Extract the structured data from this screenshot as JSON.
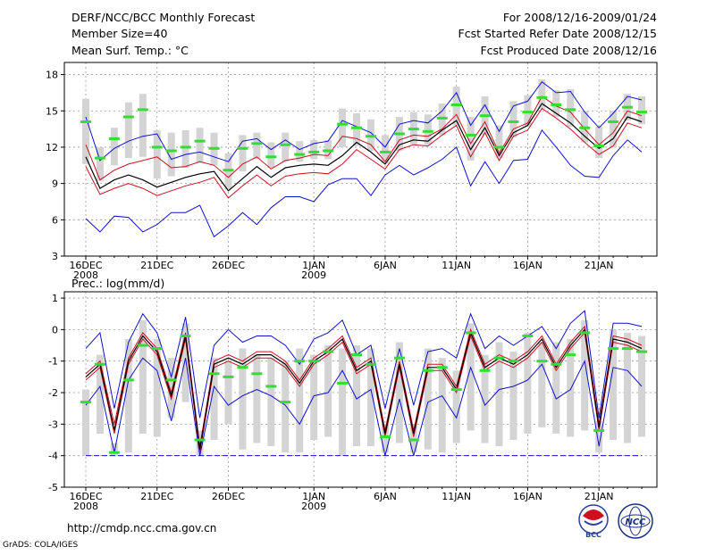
{
  "header": {
    "title": "DERF/NCC/BCC Monthly Forecast",
    "member_size": "Member Size=40",
    "variable": "Mean Surf. Temp.: °C",
    "period": "For 2008/12/16-2009/01/24",
    "started": "Fcst Started Refer Date 2008/12/15",
    "produced": "Fcst Produced Date 2008/12/16"
  },
  "footer": {
    "url": "http://cmdp.ncc.cma.gov.cn",
    "credit": "GrADS: COLA/IGES",
    "logo_bcc": "BCC",
    "logo_ncc": "NCC"
  },
  "colors": {
    "max_min": "#1010d0",
    "spread": "#cc1020",
    "mean": "#000000",
    "box": "#d4d4d4",
    "median": "#33dd33",
    "grid": "#999999"
  },
  "chart_data": [
    {
      "type": "line",
      "title": "Mean Surf. Temp.: °C",
      "xlabel": "",
      "ylabel": "°C",
      "ylim": [
        3,
        19
      ],
      "yticks": [
        3,
        6,
        9,
        12,
        15,
        18
      ],
      "x_tick_labels": [
        "16DEC",
        "21DEC",
        "26DEC",
        "1JAN",
        "6JAN",
        "11JAN",
        "16JAN",
        "21JAN"
      ],
      "x_tick_days": [
        1,
        6,
        11,
        17,
        22,
        27,
        32,
        37
      ],
      "year_labels": [
        {
          "day": 1,
          "label": "2008"
        },
        {
          "day": 17,
          "label": "2009"
        }
      ],
      "days": 40,
      "series": [
        {
          "name": "max",
          "values": [
            14.5,
            10.9,
            11.9,
            12.5,
            12.9,
            13.1,
            11.0,
            11.4,
            11.6,
            11.2,
            10.8,
            12.5,
            12.7,
            11.8,
            12.6,
            11.8,
            12.3,
            12.5,
            14.2,
            13.7,
            13.2,
            12.0,
            13.9,
            14.2,
            14.0,
            15.0,
            16.5,
            13.8,
            15.5,
            13.3,
            15.4,
            15.8,
            17.4,
            16.5,
            16.6,
            14.9,
            13.6,
            14.8,
            16.2,
            15.9
          ]
        },
        {
          "name": "upper",
          "values": [
            12.2,
            9.3,
            10.1,
            10.6,
            10.9,
            11.2,
            10.3,
            10.4,
            10.8,
            10.5,
            9.5,
            10.6,
            11.2,
            10.2,
            10.9,
            11.1,
            11.4,
            11.3,
            12.9,
            12.7,
            12.2,
            10.8,
            12.6,
            13.0,
            12.9,
            13.5,
            14.7,
            12.3,
            14.1,
            11.5,
            13.5,
            14.0,
            16.2,
            15.4,
            14.9,
            13.5,
            12.2,
            13.2,
            15.0,
            14.6
          ]
        },
        {
          "name": "mean",
          "values": [
            11.2,
            8.6,
            9.3,
            9.7,
            9.3,
            8.7,
            9.1,
            9.5,
            9.8,
            10.0,
            8.4,
            9.4,
            10.4,
            9.5,
            10.3,
            10.5,
            10.6,
            10.5,
            11.3,
            12.4,
            11.6,
            10.6,
            12.2,
            12.6,
            12.5,
            13.4,
            14.2,
            11.8,
            13.6,
            11.3,
            13.2,
            13.8,
            15.6,
            14.8,
            14.0,
            12.9,
            11.9,
            12.7,
            14.5,
            14.1
          ]
        },
        {
          "name": "lower",
          "values": [
            10.4,
            8.1,
            8.6,
            9.0,
            8.6,
            8.0,
            8.4,
            8.8,
            9.1,
            9.5,
            7.8,
            8.8,
            9.7,
            8.8,
            9.6,
            9.8,
            9.9,
            9.8,
            10.6,
            11.8,
            11.0,
            10.2,
            11.8,
            12.2,
            12.1,
            13.0,
            13.8,
            11.2,
            13.2,
            10.9,
            12.9,
            13.4,
            15.2,
            14.4,
            13.5,
            12.4,
            11.4,
            12.1,
            14.0,
            13.6
          ]
        },
        {
          "name": "min",
          "values": [
            6.1,
            5.0,
            6.3,
            6.2,
            5.0,
            5.6,
            6.6,
            6.6,
            7.2,
            4.6,
            5.5,
            6.6,
            5.6,
            7.0,
            7.9,
            7.9,
            7.5,
            8.9,
            9.4,
            9.4,
            8.0,
            9.7,
            10.5,
            9.7,
            10.3,
            11.0,
            12.0,
            8.8,
            10.8,
            9.0,
            10.9,
            11.0,
            13.4,
            12.0,
            10.5,
            9.6,
            9.5,
            11.3,
            12.6,
            11.6
          ]
        },
        {
          "name": "median",
          "values": [
            14.1,
            11.1,
            12.7,
            14.5,
            15.1,
            12.0,
            11.7,
            12.0,
            12.5,
            11.9,
            10.1,
            11.9,
            12.3,
            11.2,
            12.2,
            11.4,
            11.6,
            11.7,
            13.9,
            13.6,
            12.9,
            11.6,
            13.1,
            13.5,
            13.3,
            14.4,
            15.5,
            13.0,
            14.6,
            12.0,
            14.1,
            14.9,
            16.1,
            15.5,
            15.1,
            13.6,
            12.1,
            14.1,
            15.3,
            14.9
          ]
        },
        {
          "name": "box_high",
          "values": [
            16.0,
            12.0,
            13.6,
            15.7,
            16.4,
            13.4,
            13.2,
            13.4,
            13.6,
            13.2,
            11.5,
            13.0,
            13.2,
            12.4,
            13.2,
            12.5,
            12.6,
            12.6,
            15.2,
            14.8,
            14.3,
            13.0,
            14.5,
            14.9,
            14.7,
            15.6,
            17.0,
            14.5,
            16.2,
            13.8,
            15.8,
            16.3,
            17.6,
            16.7,
            16.8,
            15.0,
            13.7,
            15.0,
            16.4,
            16.2
          ]
        },
        {
          "name": "box_low",
          "values": [
            10.6,
            9.2,
            10.5,
            11.1,
            11.2,
            9.4,
            9.6,
            10.3,
            10.7,
            10.5,
            8.5,
            10.0,
            11.0,
            10.3,
            10.8,
            10.8,
            11.0,
            11.0,
            12.0,
            12.1,
            11.7,
            10.7,
            11.7,
            12.2,
            12.2,
            13.0,
            13.8,
            10.9,
            13.0,
            11.1,
            12.8,
            13.7,
            15.2,
            14.5,
            13.7,
            12.4,
            11.1,
            12.0,
            14.2,
            13.9
          ]
        }
      ]
    },
    {
      "type": "line",
      "title": "Prec.: log(mm/d)",
      "xlabel": "",
      "ylabel": "log(mm/d)",
      "ylim": [
        -5,
        1.2
      ],
      "yticks": [
        -5,
        -4,
        -3,
        -2,
        -1,
        0,
        1
      ],
      "x_tick_labels": [
        "16DEC",
        "21DEC",
        "26DEC",
        "1JAN",
        "6JAN",
        "11JAN",
        "16JAN",
        "21JAN"
      ],
      "x_tick_days": [
        1,
        6,
        11,
        17,
        22,
        27,
        32,
        37
      ],
      "year_labels": [
        {
          "day": 1,
          "label": "2008"
        },
        {
          "day": 17,
          "label": "2009"
        }
      ],
      "days": 40,
      "baseline": -4,
      "series": [
        {
          "name": "max",
          "values": [
            -0.6,
            -0.1,
            -2.5,
            -0.4,
            0.5,
            -0.1,
            -1.5,
            0.4,
            -2.8,
            -0.5,
            0.0,
            -0.4,
            -0.2,
            -0.2,
            -0.5,
            -1.1,
            -0.3,
            -0.1,
            0.3,
            -0.8,
            -0.5,
            -2.5,
            -0.6,
            -2.4,
            -0.7,
            -0.6,
            -0.9,
            0.5,
            -0.6,
            -0.2,
            -0.5,
            -0.2,
            0.1,
            -0.6,
            0.2,
            0.6,
            -2.8,
            0.2,
            0.2,
            0.1
          ]
        },
        {
          "name": "upper",
          "values": [
            -1.4,
            -1.0,
            -3.0,
            -0.9,
            -0.1,
            -0.6,
            -2.0,
            -0.1,
            -3.7,
            -1.0,
            -0.8,
            -1.0,
            -0.7,
            -0.7,
            -1.0,
            -1.6,
            -0.9,
            -0.6,
            -0.2,
            -1.2,
            -0.9,
            -3.2,
            -1.0,
            -3.2,
            -1.1,
            -1.1,
            -1.8,
            0.0,
            -1.1,
            -0.8,
            -1.0,
            -0.7,
            -0.2,
            -1.1,
            -0.4,
            0.1,
            -3.0,
            -0.2,
            -0.3,
            -0.5
          ]
        },
        {
          "name": "mean",
          "values": [
            -1.5,
            -1.1,
            -3.2,
            -1.0,
            -0.2,
            -0.7,
            -2.1,
            -0.2,
            -3.8,
            -1.1,
            -0.9,
            -1.1,
            -0.8,
            -0.8,
            -1.1,
            -1.7,
            -1.0,
            -0.7,
            -0.3,
            -1.3,
            -1.0,
            -3.3,
            -1.1,
            -3.3,
            -1.2,
            -1.2,
            -1.9,
            -0.1,
            -1.2,
            -0.9,
            -1.1,
            -0.8,
            -0.3,
            -1.2,
            -0.5,
            0.0,
            -3.1,
            -0.3,
            -0.4,
            -0.6
          ]
        },
        {
          "name": "lower",
          "values": [
            -1.6,
            -1.2,
            -3.3,
            -1.1,
            -0.3,
            -0.8,
            -2.2,
            -0.3,
            -3.9,
            -1.2,
            -1.0,
            -1.2,
            -0.9,
            -0.9,
            -1.2,
            -1.8,
            -1.1,
            -0.8,
            -0.4,
            -1.4,
            -1.1,
            -3.4,
            -1.2,
            -3.4,
            -1.3,
            -1.3,
            -2.0,
            -0.2,
            -1.3,
            -1.0,
            -1.2,
            -0.9,
            -0.4,
            -1.3,
            -0.6,
            -0.1,
            -3.2,
            -0.4,
            -0.5,
            -0.7
          ]
        },
        {
          "name": "min",
          "values": [
            -2.4,
            -1.8,
            -3.9,
            -1.6,
            -0.9,
            -1.3,
            -2.9,
            -0.9,
            -4.0,
            -1.8,
            -2.4,
            -2.1,
            -1.9,
            -2.1,
            -2.4,
            -3.0,
            -2.1,
            -2.0,
            -1.3,
            -2.2,
            -1.9,
            -4.0,
            -2.2,
            -4.0,
            -2.3,
            -2.1,
            -2.8,
            -1.2,
            -2.4,
            -1.9,
            -1.8,
            -1.6,
            -1.1,
            -2.2,
            -1.9,
            -1.0,
            -3.7,
            -1.2,
            -1.3,
            -1.8
          ]
        },
        {
          "name": "median",
          "values": [
            -2.3,
            -1.1,
            -3.9,
            -1.6,
            -0.5,
            -0.6,
            -1.6,
            -0.2,
            -3.5,
            -1.4,
            -1.5,
            -1.2,
            -1.4,
            -1.8,
            -2.3,
            -1.0,
            -1.0,
            -0.7,
            -1.7,
            -0.8,
            -1.1,
            -3.4,
            -0.9,
            -3.5,
            -1.3,
            -1.2,
            -1.9,
            -0.1,
            -1.3,
            -0.9,
            -1.0,
            -0.2,
            -1.0,
            -1.1,
            -0.8,
            -0.1,
            -3.2,
            -0.6,
            -0.6,
            -0.7
          ]
        },
        {
          "name": "box_high",
          "values": [
            -1.9,
            -0.8,
            -3.6,
            -0.3,
            0.3,
            -0.3,
            -0.9,
            0.2,
            -3.2,
            -0.9,
            -1.0,
            -0.6,
            -0.8,
            -0.9,
            -1.0,
            -0.6,
            -0.8,
            -0.5,
            -0.6,
            -0.5,
            -0.6,
            -3.0,
            -0.4,
            -3.0,
            -0.6,
            -0.9,
            -1.3,
            0.2,
            -0.8,
            -0.4,
            -0.7,
            -0.1,
            -0.4,
            -0.4,
            -0.3,
            0.3,
            -2.9,
            0.0,
            -0.1,
            -0.2
          ]
        },
        {
          "name": "box_low",
          "values": [
            -4.0,
            -3.3,
            -4.0,
            -3.9,
            -3.3,
            -3.4,
            -2.8,
            -2.3,
            -4.0,
            -3.5,
            -3.0,
            -3.8,
            -3.6,
            -3.7,
            -3.9,
            -3.9,
            -3.5,
            -3.4,
            -4.0,
            -3.7,
            -3.7,
            -3.9,
            -3.6,
            -3.9,
            -3.8,
            -3.9,
            -3.6,
            -3.2,
            -3.6,
            -3.7,
            -3.5,
            -3.3,
            -3.1,
            -3.3,
            -3.4,
            -3.2,
            -3.9,
            -3.5,
            -3.6,
            -3.4
          ]
        }
      ]
    }
  ]
}
